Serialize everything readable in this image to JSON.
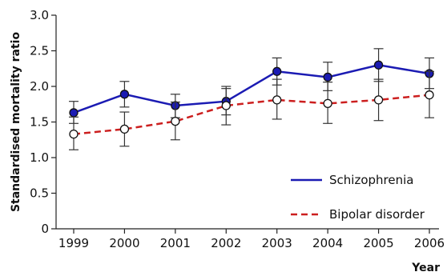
{
  "chart_data": {
    "type": "line",
    "title": "",
    "xlabel": "Year",
    "ylabel": "Standardised mortality ratio",
    "x": [
      "1999",
      "2000",
      "2001",
      "2002",
      "2003",
      "2004",
      "2005",
      "2006"
    ],
    "ylim": [
      0,
      3.0
    ],
    "yticks": [
      "0",
      "0.5",
      "1.0",
      "1.5",
      "2.0",
      "2.5",
      "3.0"
    ],
    "grid": false,
    "legend_position": "bottom-right",
    "series": [
      {
        "name": "Schizophrenia",
        "color": "#1b1bb3",
        "line_style": "solid",
        "marker": "filled-circle",
        "values": [
          1.63,
          1.89,
          1.73,
          1.79,
          2.21,
          2.13,
          2.3,
          2.18
        ],
        "err_low": [
          1.48,
          1.71,
          1.56,
          1.6,
          2.02,
          1.94,
          2.07,
          1.97
        ],
        "err_high": [
          1.79,
          2.07,
          1.89,
          2.0,
          2.4,
          2.34,
          2.53,
          2.4
        ]
      },
      {
        "name": "Bipolar disorder",
        "color": "#cc1f1f",
        "line_style": "dashed",
        "marker": "open-circle",
        "values": [
          1.33,
          1.4,
          1.51,
          1.73,
          1.81,
          1.76,
          1.81,
          1.88
        ],
        "err_low": [
          1.11,
          1.16,
          1.25,
          1.46,
          1.54,
          1.48,
          1.52,
          1.56
        ],
        "err_high": [
          1.57,
          1.64,
          1.78,
          1.97,
          2.1,
          2.06,
          2.1,
          2.21
        ]
      }
    ]
  }
}
